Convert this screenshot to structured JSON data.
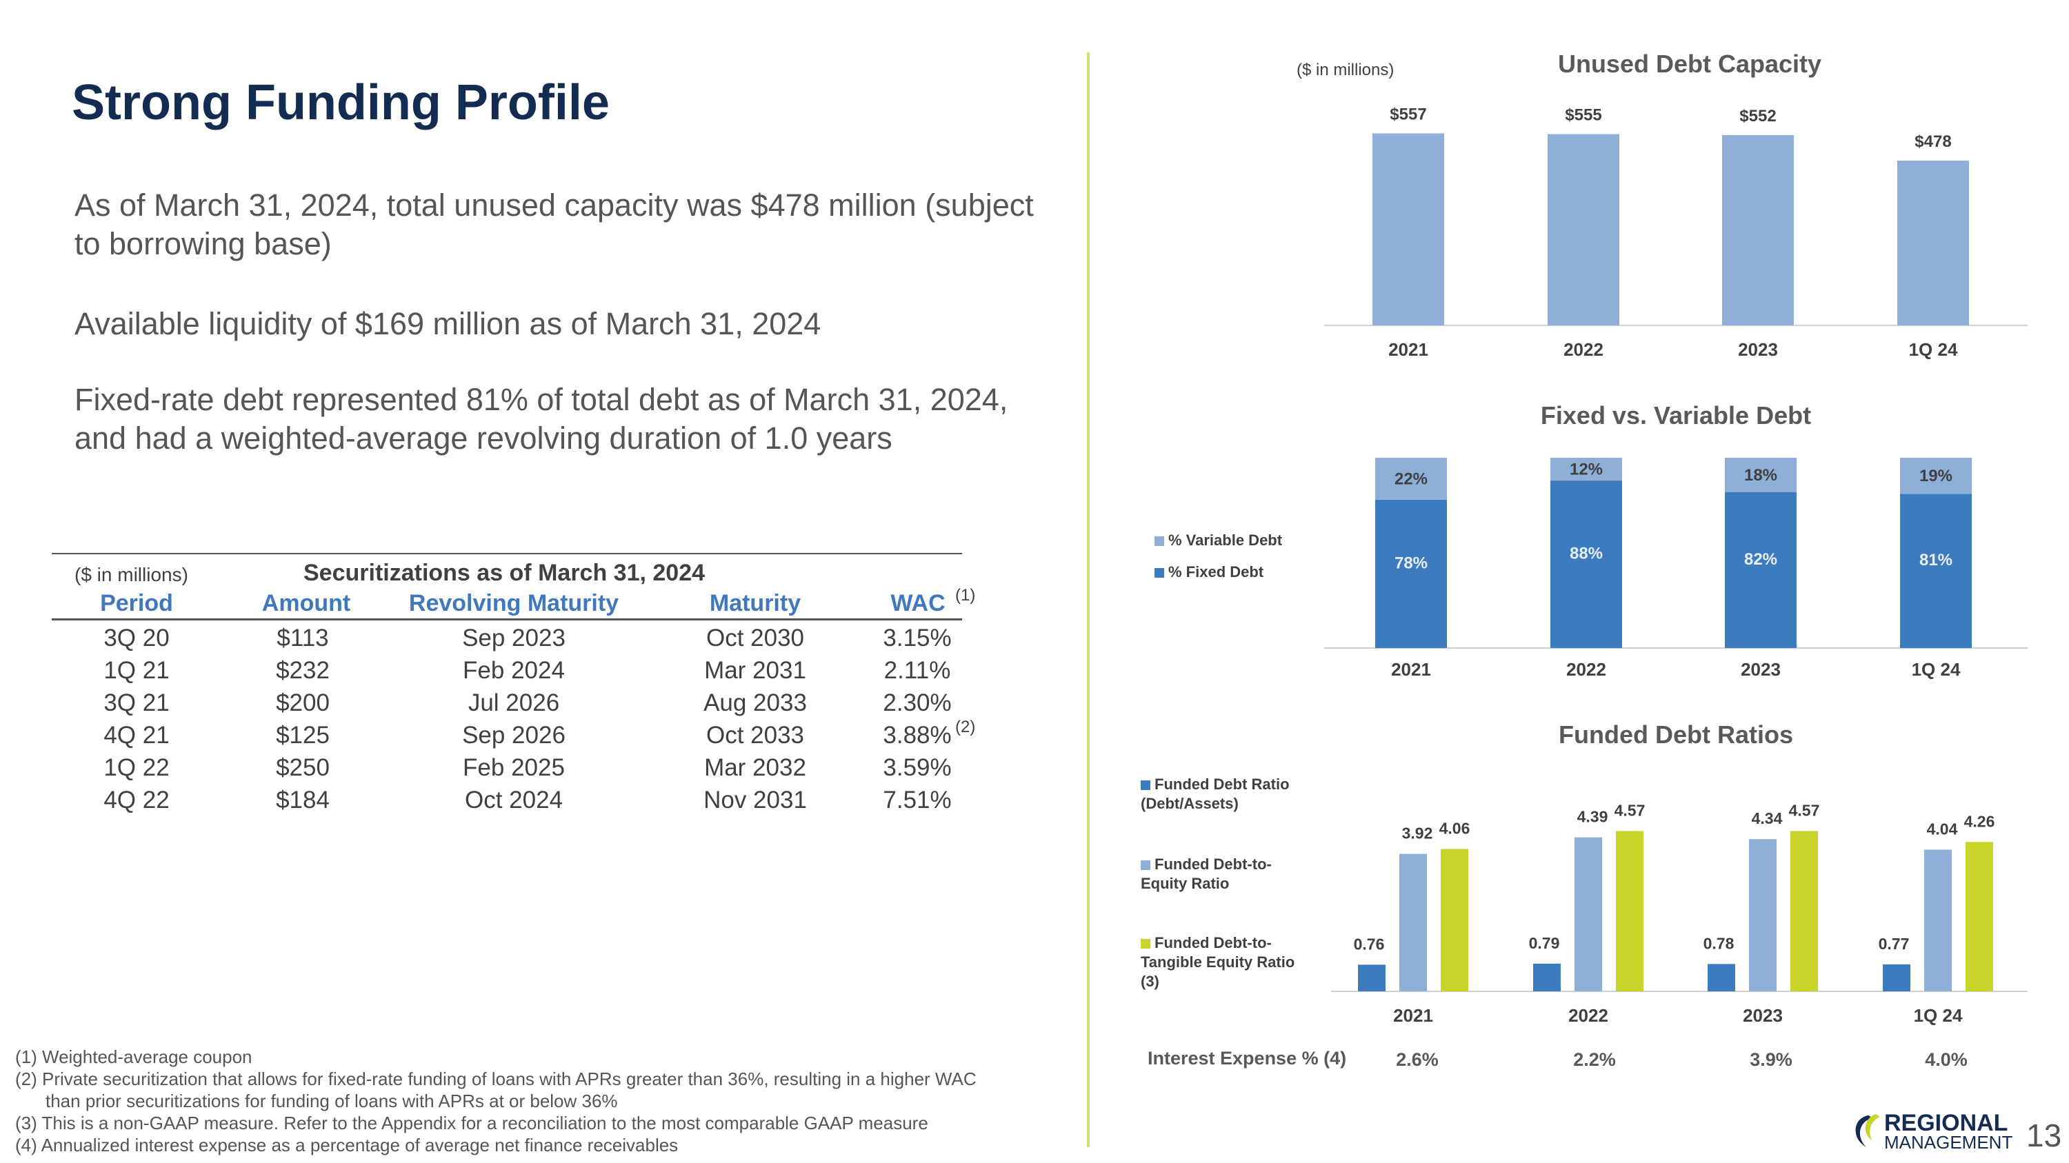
{
  "title": "Strong Funding Profile",
  "bullets": [
    "As of March 31, 2024, total unused capacity was $478 million (subject to borrowing base)",
    "Available liquidity of $169 million as of March 31, 2024",
    "Fixed-rate debt represented 81% of total debt as of March 31, 2024, and had a weighted-average revolving duration of 1.0 years"
  ],
  "table": {
    "units": "($ in millions)",
    "title": "Securitizations as of March 31, 2024",
    "headers": [
      "Period",
      "Amount",
      "Revolving Maturity",
      "Maturity",
      "WAC"
    ],
    "wac_note": "(1)",
    "rows": [
      {
        "period": "3Q 20",
        "amount": "$113",
        "revolving": "Sep 2023",
        "maturity": "Oct 2030",
        "wac": "3.15%",
        "note": ""
      },
      {
        "period": "1Q 21",
        "amount": "$232",
        "revolving": "Feb 2024",
        "maturity": "Mar 2031",
        "wac": "2.11%",
        "note": ""
      },
      {
        "period": "3Q 21",
        "amount": "$200",
        "revolving": "Jul 2026",
        "maturity": "Aug 2033",
        "wac": "2.30%",
        "note": ""
      },
      {
        "period": "4Q 21",
        "amount": "$125",
        "revolving": "Sep 2026",
        "maturity": "Oct 2033",
        "wac": "3.88%",
        "note": "(2)"
      },
      {
        "period": "1Q 22",
        "amount": "$250",
        "revolving": "Feb 2025",
        "maturity": "Mar 2032",
        "wac": "3.59%",
        "note": ""
      },
      {
        "period": "4Q 22",
        "amount": "$184",
        "revolving": "Oct 2024",
        "maturity": "Nov 2031",
        "wac": "7.51%",
        "note": ""
      }
    ]
  },
  "footnotes": [
    "(1) Weighted-average coupon",
    "(2) Private securitization that allows for fixed-rate funding of loans with APRs greater than 36%, resulting in a higher WAC",
    "than prior securitizations for funding of loans with APRs at or below 36%",
    "(3) This is a non-GAAP measure. Refer to the Appendix for a reconciliation to the most comparable GAAP measure",
    "(4) Annualized interest expense as a percentage of average net finance receivables"
  ],
  "colors": {
    "title": "#152c52",
    "header_blue": "#3f78bd",
    "light_blue": "#8eb0d8",
    "dark_blue": "#3d7bbf",
    "lime": "#c8d42a",
    "divider": "#d4dc7a"
  },
  "chart_data": [
    {
      "type": "bar",
      "title": "Unused Debt Capacity",
      "units": "($ in millions)",
      "categories": [
        "2021",
        "2022",
        "2023",
        "1Q 24"
      ],
      "values": [
        557,
        555,
        552,
        478
      ],
      "labels": [
        "$557",
        "$555",
        "$552",
        "$478"
      ],
      "ylim": [
        0,
        600
      ]
    },
    {
      "type": "bar",
      "stacked": true,
      "title": "Fixed vs. Variable Debt",
      "categories": [
        "2021",
        "2022",
        "2023",
        "1Q 24"
      ],
      "series": [
        {
          "name": "% Fixed Debt",
          "values": [
            78,
            88,
            82,
            81
          ],
          "labels": [
            "78%",
            "88%",
            "82%",
            "81%"
          ]
        },
        {
          "name": "% Variable Debt",
          "values": [
            22,
            12,
            18,
            19
          ],
          "labels": [
            "22%",
            "12%",
            "18%",
            "19%"
          ]
        }
      ],
      "ylim": [
        0,
        100
      ]
    },
    {
      "type": "bar",
      "title": "Funded Debt Ratios",
      "categories": [
        "2021",
        "2022",
        "2023",
        "1Q 24"
      ],
      "series": [
        {
          "name": "Funded Debt Ratio (Debt/Assets)",
          "values": [
            0.76,
            0.79,
            0.78,
            0.77
          ],
          "labels": [
            "0.76",
            "0.79",
            "0.78",
            "0.77"
          ]
        },
        {
          "name": "Funded Debt-to-Equity Ratio",
          "values": [
            3.92,
            4.39,
            4.34,
            4.04
          ],
          "labels": [
            "3.92",
            "4.39",
            "4.34",
            "4.04"
          ]
        },
        {
          "name": "Funded Debt-to-Tangible Equity Ratio (3)",
          "values": [
            4.06,
            4.57,
            4.57,
            4.26
          ],
          "labels": [
            "4.06",
            "4.57",
            "4.57",
            "4.26"
          ]
        }
      ],
      "ylim": [
        0,
        5
      ],
      "interest_expense": {
        "label": "Interest Expense % (4)",
        "values": [
          "2.6%",
          "2.2%",
          "3.9%",
          "4.0%"
        ]
      }
    }
  ],
  "logo": {
    "line1": "REGIONAL",
    "line2": "MANAGEMENT"
  },
  "page_number": "13"
}
